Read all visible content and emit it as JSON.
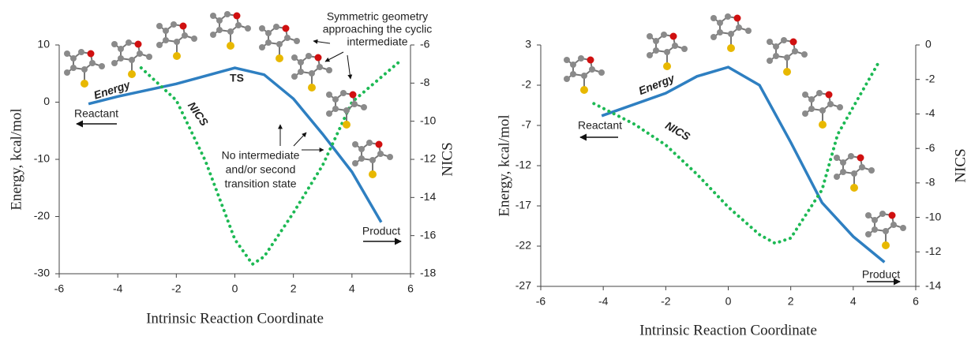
{
  "chart_data": [
    {
      "type": "line",
      "xlabel": "Intrinsic Reaction Coordinate",
      "ylabel": "Energy, kcal/mol",
      "y2label": "NICS",
      "xlim": [
        -6,
        6
      ],
      "xticks": [
        -6,
        -4,
        -2,
        0,
        2,
        4,
        6
      ],
      "ylim": [
        -30,
        10
      ],
      "yticks": [
        -30,
        -20,
        -10,
        0,
        10
      ],
      "y2lim": [
        -18,
        -6
      ],
      "y2ticks": [
        -18,
        -16,
        -14,
        -12,
        -10,
        -8,
        -6
      ],
      "series": [
        {
          "name": "Energy",
          "color": "#2e7fc1",
          "x": [
            -5,
            -4,
            -2,
            0,
            1,
            2,
            3,
            4,
            5
          ],
          "values": [
            -0.3,
            1.0,
            3.2,
            6.0,
            4.8,
            0.6,
            -5.6,
            -12.2,
            -21
          ]
        },
        {
          "name": "NICS",
          "color": "#1db954",
          "axis": "y2",
          "x": [
            -3.2,
            -2,
            -1,
            0,
            0.6,
            1,
            2,
            3,
            4,
            5.6
          ],
          "values": [
            -7.2,
            -8.9,
            -12.1,
            -16.2,
            -17.5,
            -17.1,
            -14.8,
            -12.3,
            -9.0,
            -6.9
          ]
        }
      ],
      "annotations": [
        "TS",
        "Reactant",
        "Product",
        "Symmetric geometry",
        "approaching the cyclic",
        "intermediate",
        "No intermediate",
        "and/or second",
        "transition state"
      ]
    },
    {
      "type": "line",
      "xlabel": "Intrinsic Reaction Coordinate",
      "ylabel": "Energy, kcal/mol",
      "y2label": "NICS",
      "xlim": [
        -6,
        6
      ],
      "xticks": [
        -6,
        -4,
        -2,
        0,
        2,
        4,
        6
      ],
      "ylim": [
        -27,
        3
      ],
      "yticks": [
        -27,
        -22,
        -17,
        -12,
        -7,
        -2,
        3
      ],
      "y2lim": [
        -14,
        0
      ],
      "y2ticks": [
        -14,
        -12,
        -10,
        -8,
        -6,
        -4,
        -2,
        0
      ],
      "series": [
        {
          "name": "Energy",
          "color": "#2e7fc1",
          "x": [
            -4.05,
            -2,
            -1,
            0,
            1,
            2,
            3,
            4,
            5
          ],
          "values": [
            -5.8,
            -3,
            -0.9,
            0.25,
            -2,
            -9.1,
            -16.6,
            -20.8,
            -24
          ]
        },
        {
          "name": "NICS",
          "color": "#1db954",
          "axis": "y2",
          "x": [
            -4.3,
            -3,
            -2,
            -1,
            0,
            1,
            1.5,
            2,
            3,
            3.5,
            4,
            4.8
          ],
          "values": [
            -3.4,
            -4.6,
            -5.8,
            -7.5,
            -9.4,
            -11.0,
            -11.5,
            -11.2,
            -8.4,
            -5.2,
            -3.6,
            -1.05
          ]
        }
      ],
      "annotations": [
        "Reactant",
        "Product"
      ]
    }
  ]
}
